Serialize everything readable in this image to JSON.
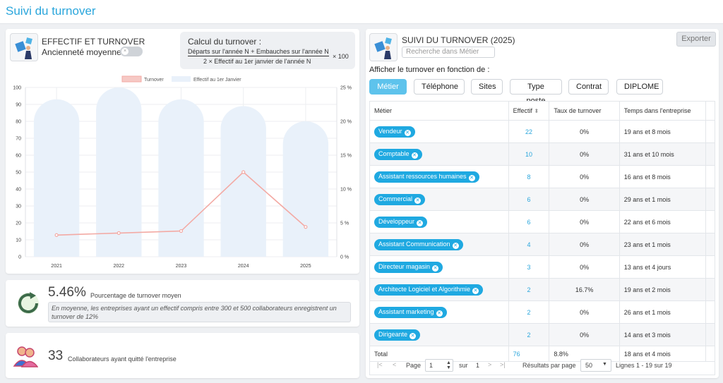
{
  "page": {
    "title": "Suivi du turnover"
  },
  "left_card": {
    "heading": "EFFECTIF ET TURNOVER",
    "toggle_label": "Ancienneté moyenne",
    "toggle_knob": "×",
    "formula": {
      "title": "Calcul du turnover :",
      "numerator": "Départs sur l'année N + Embauches sur l'année N",
      "denominator": "2 × Effectif au 1er janvier de l'année N",
      "factor": "× 100"
    }
  },
  "chart_data": {
    "type": "bar",
    "categories": [
      "2021",
      "2022",
      "2023",
      "2024",
      "2025"
    ],
    "series": [
      {
        "name": "Effectif au 1er Janvier",
        "kind": "bar",
        "axis": "left",
        "values": [
          93,
          100,
          93,
          89,
          80
        ],
        "color": "#e9f1fa"
      },
      {
        "name": "Turnover",
        "kind": "line",
        "axis": "right",
        "values": [
          3.2,
          3.5,
          3.8,
          12.5,
          4.4
        ],
        "color": "#f3aaa4"
      }
    ],
    "y_left": {
      "min": 0,
      "max": 100,
      "ticks": [
        "0",
        "10",
        "20",
        "30",
        "40",
        "50",
        "60",
        "70",
        "80",
        "90",
        "100"
      ]
    },
    "y_right": {
      "min": 0,
      "max": 25,
      "ticks": [
        "0 %",
        "5 %",
        "10 %",
        "15 %",
        "20 %",
        "25 %"
      ]
    },
    "legend_position": "top",
    "grid": true
  },
  "turnover_stat": {
    "value": "5.46%",
    "label": "Pourcentage de turnover moyen",
    "note": "En moyenne, les entreprises ayant un effectif compris entre 300 et 500 collaborateurs enregistrent un turnover de 12%"
  },
  "left_stat": {
    "value": "33",
    "label": "Collaborateurs ayant quitté l'entreprise"
  },
  "right_card": {
    "heading": "SUIVI DU TURNOVER (2025)",
    "search_placeholder": "Recherche dans Métier",
    "export_label": "Exporter",
    "filter_label": "Afficher le turnover en fonction de :",
    "filters": [
      "Métier",
      "Téléphone",
      "Sites",
      "Type poste",
      "Contrat",
      "DIPLOME"
    ],
    "columns": [
      "Métier",
      "Effectif",
      "Taux de turnover",
      "Temps dans l'entreprise"
    ],
    "rows": [
      {
        "metier": "Vendeur",
        "effectif": "22",
        "taux": "0%",
        "temps": "19 ans et 8 mois"
      },
      {
        "metier": "Comptable",
        "effectif": "10",
        "taux": "0%",
        "temps": "31 ans et 10 mois"
      },
      {
        "metier": "Assistant ressources humaines",
        "effectif": "8",
        "taux": "0%",
        "temps": "16 ans et 8 mois"
      },
      {
        "metier": "Commercial",
        "effectif": "6",
        "taux": "0%",
        "temps": "29 ans et 1 mois"
      },
      {
        "metier": "Développeur",
        "effectif": "6",
        "taux": "0%",
        "temps": "22 ans et 6 mois"
      },
      {
        "metier": "Assistant Communication",
        "effectif": "4",
        "taux": "0%",
        "temps": "23 ans et 1 mois"
      },
      {
        "metier": "Directeur magasin",
        "effectif": "3",
        "taux": "0%",
        "temps": "13 ans et 4 jours"
      },
      {
        "metier": "Architecte Logiciel et Algorithmie",
        "effectif": "2",
        "taux": "16.7%",
        "temps": "19 ans et 2 mois"
      },
      {
        "metier": "Assistant marketing",
        "effectif": "2",
        "taux": "0%",
        "temps": "26 ans et 1 mois"
      },
      {
        "metier": "Dirigeante",
        "effectif": "2",
        "taux": "0%",
        "temps": "14 ans et 3 mois"
      }
    ],
    "total": {
      "label": "Total",
      "effectif": "76",
      "taux": "8.8%",
      "temps": "18 ans et 4 mois"
    },
    "pager": {
      "page_label": "Page",
      "page_value": "1",
      "sur_label": "sur",
      "total_pages": "1",
      "per_page_label": "Résultats par page",
      "per_page_value": "50",
      "lines_label": "Lignes 1 - 19 sur 19"
    }
  }
}
